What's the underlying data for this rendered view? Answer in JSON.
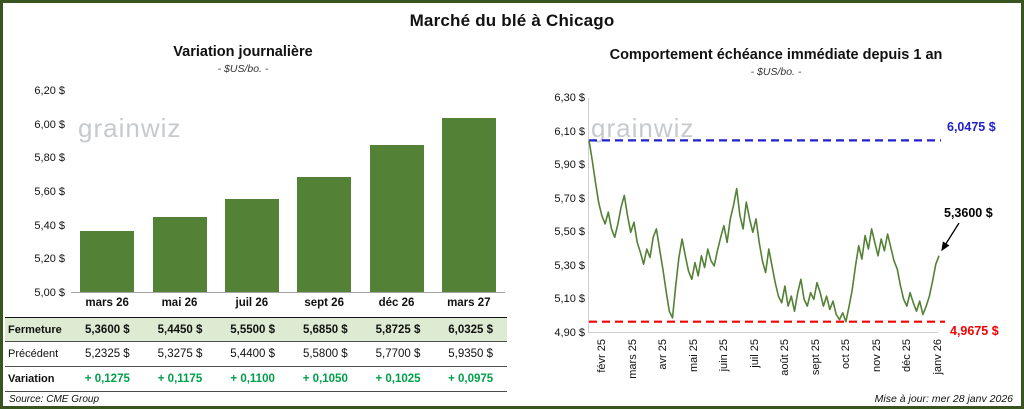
{
  "title": "Marché du blé à Chicago",
  "watermark": "grainwiz",
  "footer": {
    "source": "Source: CME Group",
    "updated": "Mise à jour: mer 28 janv 2026"
  },
  "colors": {
    "bar_green": "#538135",
    "line_green": "#538135",
    "table_row_green": "#dcebd2",
    "variation_green": "#00a04a",
    "high_blue": "#2222cc",
    "low_red": "#f40000",
    "frame_green": "#38551f"
  },
  "table": {
    "rows": [
      {
        "label": "Fermeture",
        "values": [
          "5,3600 $",
          "5,4450 $",
          "5,5500 $",
          "5,6850 $",
          "5,8725 $",
          "6,0325 $"
        ]
      },
      {
        "label": "Précédent",
        "values": [
          "5,2325 $",
          "5,3275 $",
          "5,4400 $",
          "5,5800 $",
          "5,7700 $",
          "5,9350 $"
        ]
      },
      {
        "label": "Variation",
        "values": [
          "+ 0,1275",
          "+ 0,1175",
          "+ 0,1100",
          "+ 0,1050",
          "+ 0,1025",
          "+ 0,0975"
        ]
      }
    ]
  },
  "chart_data": [
    {
      "type": "bar",
      "title": "Variation journalière",
      "subtitle": "- $US/bo. -",
      "categories": [
        "mars 26",
        "mai 26",
        "juil 26",
        "sept 26",
        "déc 26",
        "mars 27"
      ],
      "values": [
        5.36,
        5.445,
        5.55,
        5.685,
        5.8725,
        6.0325
      ],
      "ylim": [
        5.0,
        6.2
      ],
      "yticks": [
        "6,20 $",
        "6,00 $",
        "5,80 $",
        "5,60 $",
        "5,40 $",
        "5,20 $",
        "5,00 $"
      ],
      "grid": false,
      "legend": false,
      "bar_color": "#538135"
    },
    {
      "type": "line",
      "title": "Comportement échéance immédiate depuis 1 an",
      "subtitle": "- $US/bo. -",
      "x_labels": [
        "févr 25",
        "mars 25",
        "avr 25",
        "mai 25",
        "juin 25",
        "juil 25",
        "août 25",
        "sept 25",
        "oct 25",
        "nov 25",
        "déc 25",
        "janv 26"
      ],
      "ylim": [
        4.9,
        6.3
      ],
      "yticks": [
        "6,30 $",
        "6,10 $",
        "5,90 $",
        "5,70 $",
        "5,50 $",
        "5,30 $",
        "5,10 $",
        "4,90 $"
      ],
      "grid": false,
      "legend": false,
      "line_color": "#538135",
      "high_line": {
        "value": 6.0475,
        "label": "6,0475 $",
        "color": "#2222cc"
      },
      "low_line": {
        "value": 4.9675,
        "label": "4,9675 $",
        "color": "#f40000"
      },
      "last_point": {
        "value": 5.36,
        "label": "5,3600 $"
      },
      "values": [
        6.0475,
        5.93,
        5.8,
        5.68,
        5.6,
        5.55,
        5.62,
        5.52,
        5.47,
        5.55,
        5.65,
        5.72,
        5.6,
        5.5,
        5.56,
        5.44,
        5.38,
        5.31,
        5.4,
        5.35,
        5.47,
        5.52,
        5.4,
        5.28,
        5.15,
        5.03,
        4.99,
        5.18,
        5.35,
        5.46,
        5.36,
        5.27,
        5.22,
        5.32,
        5.24,
        5.36,
        5.29,
        5.4,
        5.33,
        5.3,
        5.39,
        5.47,
        5.54,
        5.44,
        5.58,
        5.66,
        5.76,
        5.6,
        5.52,
        5.68,
        5.58,
        5.5,
        5.58,
        5.44,
        5.33,
        5.26,
        5.4,
        5.3,
        5.2,
        5.12,
        5.08,
        5.18,
        5.06,
        5.12,
        5.03,
        5.14,
        5.22,
        5.1,
        5.06,
        5.14,
        5.1,
        5.2,
        5.14,
        5.06,
        5.12,
        5.04,
        5.09,
        5.01,
        4.98,
        5.02,
        4.9675,
        5.06,
        5.16,
        5.3,
        5.42,
        5.34,
        5.48,
        5.4,
        5.52,
        5.44,
        5.36,
        5.46,
        5.39,
        5.49,
        5.41,
        5.33,
        5.28,
        5.18,
        5.1,
        5.06,
        5.14,
        5.08,
        5.03,
        5.09,
        5.01,
        5.06,
        5.12,
        5.21,
        5.31,
        5.36
      ]
    }
  ]
}
